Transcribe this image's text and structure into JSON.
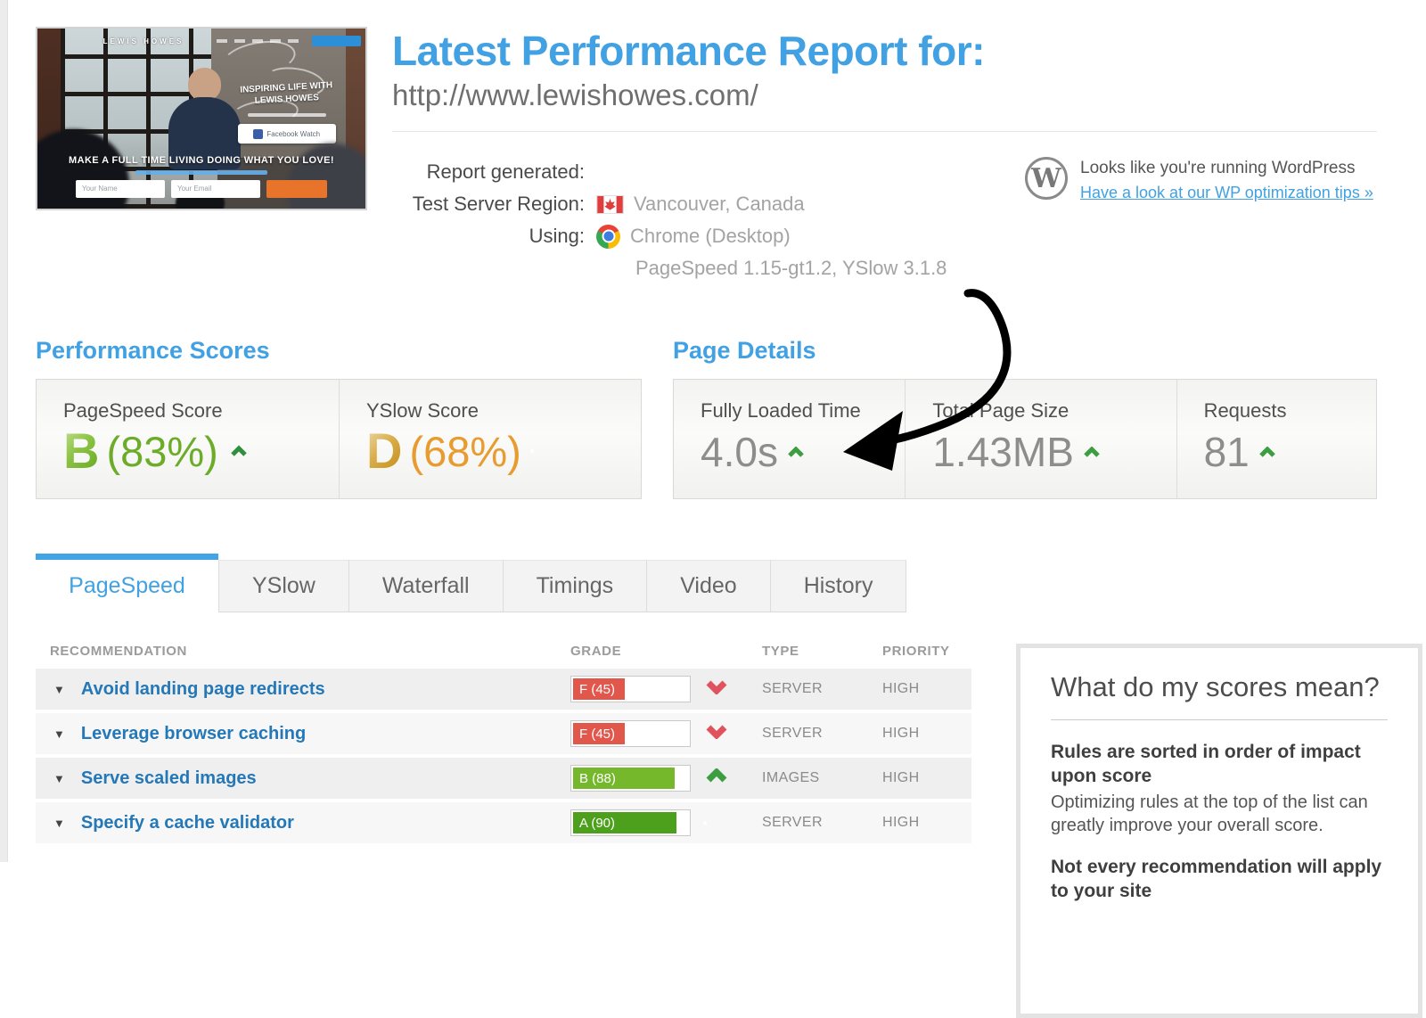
{
  "header": {
    "title": "Latest Performance Report for:",
    "url": "http://www.lewishowes.com/"
  },
  "thumbnail": {
    "brand": "LEWIS HOWES",
    "overlay_title": "INSPIRING LIFE WITH LEWIS HOWES",
    "watch_button": "Facebook Watch",
    "headline": "MAKE A FULL TIME LIVING DOING WHAT YOU LOVE!",
    "name_placeholder": "Your Name",
    "email_placeholder": "Your Email"
  },
  "report_info": {
    "rows": [
      {
        "label": "Report generated:",
        "value": ""
      },
      {
        "label": "Test Server Region:",
        "value": "Vancouver, Canada",
        "icon": "canada-flag"
      },
      {
        "label": "Using:",
        "value": "Chrome (Desktop)",
        "icon": "chrome"
      },
      {
        "label": "",
        "value": "PageSpeed 1.15-gt1.2, YSlow 3.1.8"
      }
    ]
  },
  "wordpress": {
    "message": "Looks like you're running WordPress",
    "link": "Have a look at our WP optimization tips »"
  },
  "performance_scores": {
    "heading": "Performance Scores",
    "scores": [
      {
        "label": "PageSpeed Score",
        "grade": "B",
        "percent": "(83%)",
        "indicator": "up-green"
      },
      {
        "label": "YSlow Score",
        "grade": "D",
        "percent": "(68%)",
        "indicator": "diamond-orange"
      }
    ]
  },
  "page_details": {
    "heading": "Page Details",
    "metrics": [
      {
        "label": "Fully Loaded Time",
        "value": "4.0s",
        "indicator": "up-green"
      },
      {
        "label": "Total Page Size",
        "value": "1.43MB",
        "indicator": "up-green"
      },
      {
        "label": "Requests",
        "value": "81",
        "indicator": "up-green"
      }
    ]
  },
  "tabs": {
    "active": "PageSpeed",
    "items": [
      {
        "label": "PageSpeed"
      },
      {
        "label": "YSlow"
      },
      {
        "label": "Waterfall"
      },
      {
        "label": "Timings"
      },
      {
        "label": "Video"
      },
      {
        "label": "History"
      }
    ]
  },
  "recommendations": {
    "headers": [
      "RECOMMENDATION",
      "GRADE",
      "TYPE",
      "PRIORITY"
    ],
    "rows": [
      {
        "name": "Avoid landing page redirects",
        "grade_label": "F (45)",
        "grade": "F",
        "fill_percent": 45,
        "indicator": "down-red",
        "type": "SERVER",
        "priority": "HIGH"
      },
      {
        "name": "Leverage browser caching",
        "grade_label": "F (45)",
        "grade": "F",
        "fill_percent": 45,
        "indicator": "down-red",
        "type": "SERVER",
        "priority": "HIGH"
      },
      {
        "name": "Serve scaled images",
        "grade_label": "B (88)",
        "grade": "B",
        "fill_percent": 88,
        "indicator": "up-green",
        "type": "IMAGES",
        "priority": "HIGH"
      },
      {
        "name": "Specify a cache validator",
        "grade_label": "A (90)",
        "grade": "A",
        "fill_percent": 90,
        "indicator": "diamond-orange",
        "type": "SERVER",
        "priority": "HIGH"
      }
    ]
  },
  "sidebar": {
    "title": "What do my scores mean?",
    "para1_bold": "Rules are sorted in order of impact upon score",
    "para1_text": "Optimizing rules at the top of the list can greatly improve your overall score.",
    "para2_bold": "Not every recommendation will apply to your site"
  },
  "colors": {
    "accent_blue": "#41a1e2",
    "table_link_blue": "#2478b8",
    "grade_f_red": "#e2574c",
    "grade_b_green": "#76b82c",
    "grade_a_green": "#4da01c",
    "score_b_green": "#6cac29",
    "score_d_orange": "#e89b2e",
    "warn_diamond_orange": "#f5a623",
    "down_chevron_red": "#e0525e",
    "up_chevron_green": "#3c9e40",
    "arrow_annotation": "#000000"
  }
}
